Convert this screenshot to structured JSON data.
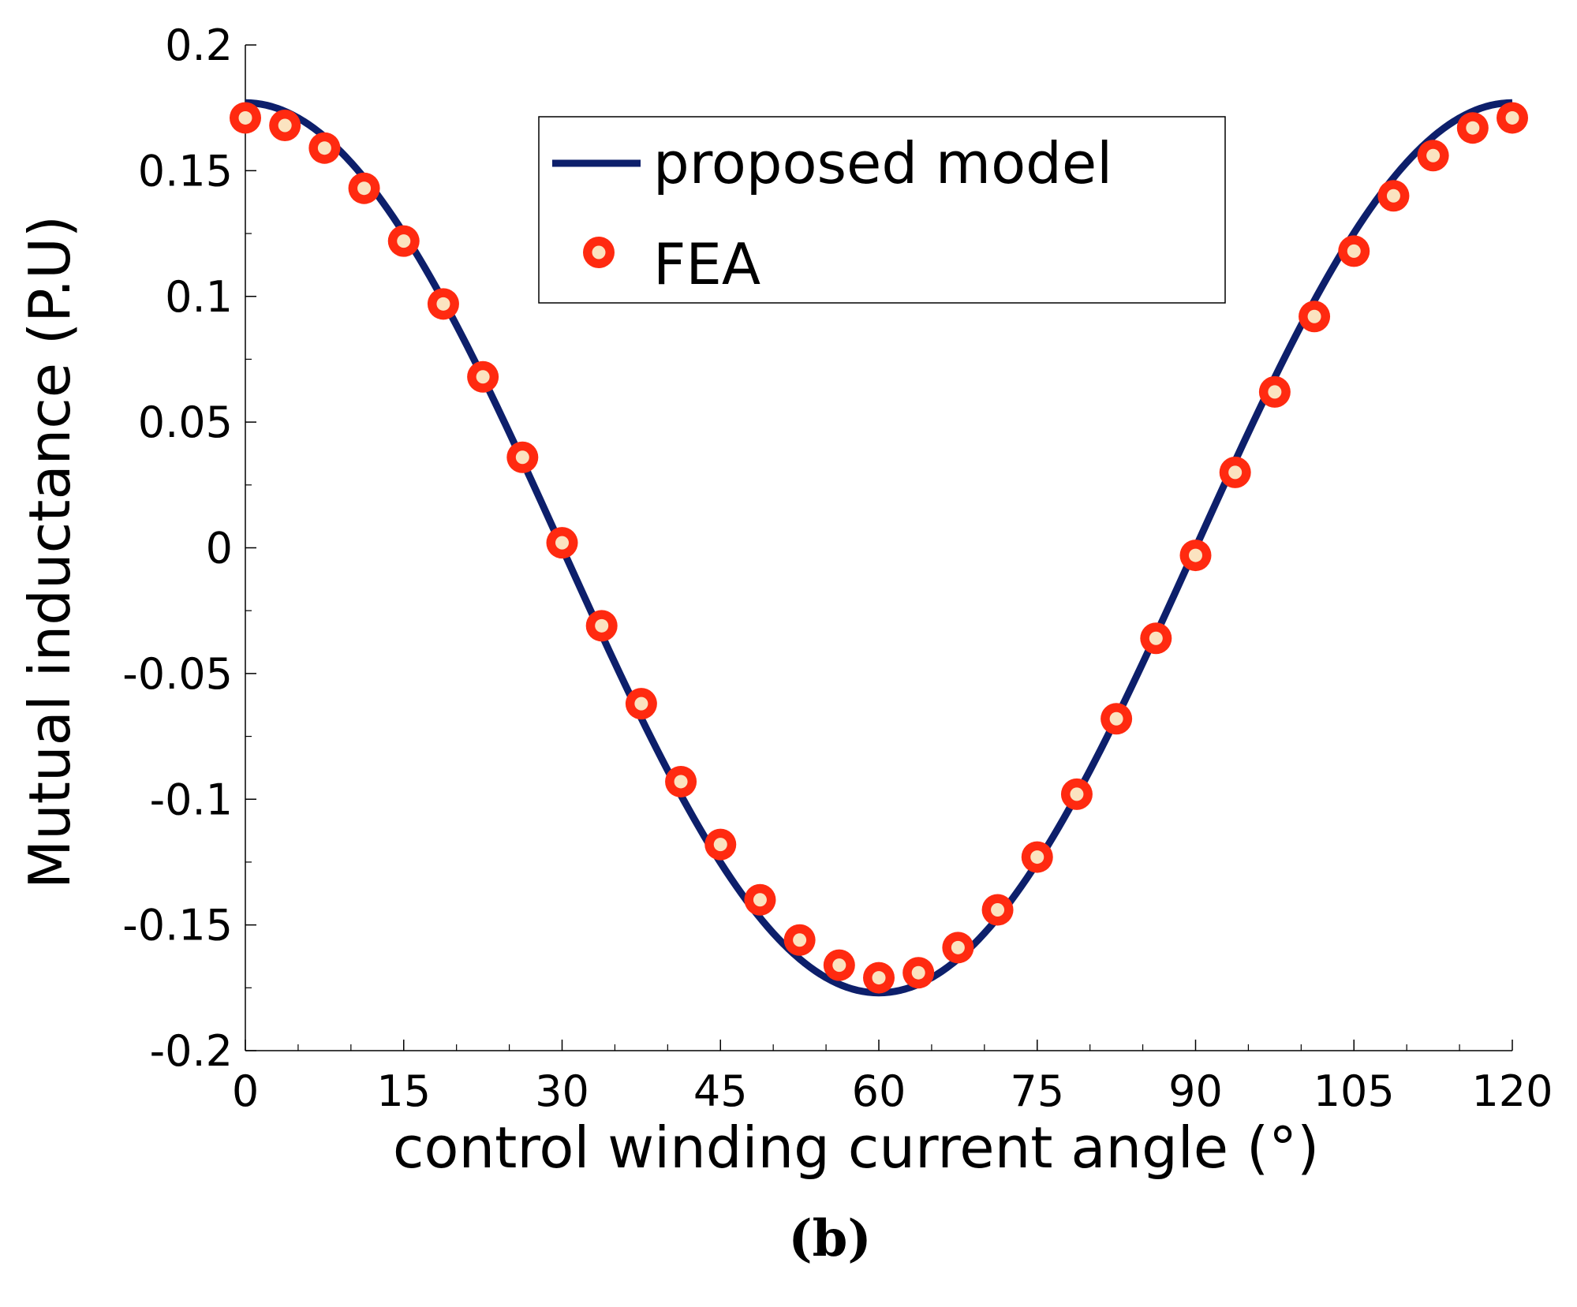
{
  "chart_data": {
    "type": "line",
    "title": "",
    "caption": "(b)",
    "xlabel": "control winding current angle (°)",
    "ylabel": "Mutual inductance (P.U)",
    "xlim": [
      0,
      120
    ],
    "ylim": [
      -0.2,
      0.2
    ],
    "x_ticks": [
      0,
      15,
      30,
      45,
      60,
      75,
      90,
      105,
      120
    ],
    "x_tick_labels": [
      "0",
      "15",
      "30",
      "45",
      "60",
      "75",
      "90",
      "105",
      "120"
    ],
    "y_ticks": [
      0.2,
      0.15,
      0.1,
      0.05,
      0,
      -0.05,
      -0.1,
      -0.15,
      -0.2
    ],
    "y_tick_labels": [
      "0.2",
      "0.15",
      "0.1",
      "0.05",
      "0",
      "-0.05",
      "-0.1",
      "-0.15",
      "-0.2"
    ],
    "grid": false,
    "legend_position": "top-right",
    "series": [
      {
        "name": "proposed model",
        "style": "line",
        "color": "#0d1f6b",
        "function": "0.177*cos(3*x deg)",
        "amplitude": 0.177,
        "x_range": [
          0,
          120
        ]
      },
      {
        "name": "FEA",
        "style": "markers",
        "color": "#ff2a10",
        "inner_color": "#fbe3c0",
        "x": [
          0,
          3.75,
          7.5,
          11.25,
          15,
          18.75,
          22.5,
          26.25,
          30,
          33.75,
          37.5,
          41.25,
          45,
          48.75,
          52.5,
          56.25,
          60,
          63.75,
          67.5,
          71.25,
          75,
          78.75,
          82.5,
          86.25,
          90,
          93.75,
          97.5,
          101.25,
          105,
          108.75,
          112.5,
          116.25,
          120
        ],
        "y": [
          0.171,
          0.168,
          0.159,
          0.143,
          0.122,
          0.097,
          0.068,
          0.036,
          0.002,
          -0.031,
          -0.062,
          -0.093,
          -0.118,
          -0.14,
          -0.156,
          -0.166,
          -0.171,
          -0.169,
          -0.159,
          -0.144,
          -0.123,
          -0.098,
          -0.068,
          -0.036,
          -0.003,
          0.03,
          0.062,
          0.092,
          0.118,
          0.14,
          0.156,
          0.167,
          0.171
        ]
      }
    ],
    "legend": [
      {
        "label": "proposed model",
        "marker": "line"
      },
      {
        "label": "FEA",
        "marker": "circle"
      }
    ]
  }
}
